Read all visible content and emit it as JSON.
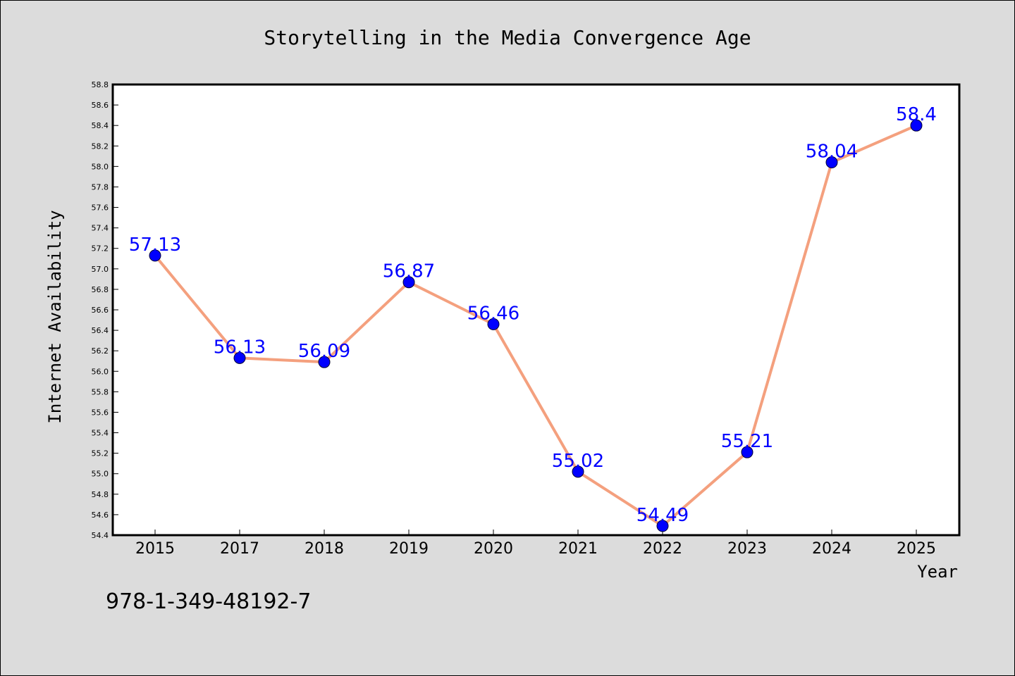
{
  "chart_data": {
    "type": "line",
    "title": "Storytelling in the Media Convergence Age",
    "xlabel": "Year",
    "ylabel": "Internet Availability",
    "categories": [
      "2015",
      "2017",
      "2018",
      "2019",
      "2020",
      "2021",
      "2022",
      "2023",
      "2024",
      "2025"
    ],
    "values": [
      57.13,
      56.13,
      56.09,
      56.87,
      56.46,
      55.02,
      54.49,
      55.21,
      58.04,
      58.4
    ],
    "value_labels": [
      "57.13",
      "56.13",
      "56.09",
      "56.87",
      "56.46",
      "55.02",
      "54.49",
      "55.21",
      "58.04",
      "58.4"
    ],
    "ylim": [
      54.4,
      58.8
    ],
    "yticks": [
      "54.4",
      "54.6",
      "54.8",
      "55.0",
      "55.2",
      "55.4",
      "55.6",
      "55.8",
      "56.0",
      "56.2",
      "56.4",
      "56.6",
      "56.8",
      "57.0",
      "57.2",
      "57.4",
      "57.6",
      "57.8",
      "58.0",
      "58.2",
      "58.4",
      "58.6",
      "58.8"
    ],
    "grid": false,
    "legend": "none",
    "line_color": "#f4a07e",
    "marker_color": "#0000ff",
    "label_color": "#0000ff",
    "background_color": "#dcdcdc",
    "plot_background": "#ffffff"
  },
  "annotation": {
    "isbn": "978-1-349-48192-7"
  }
}
